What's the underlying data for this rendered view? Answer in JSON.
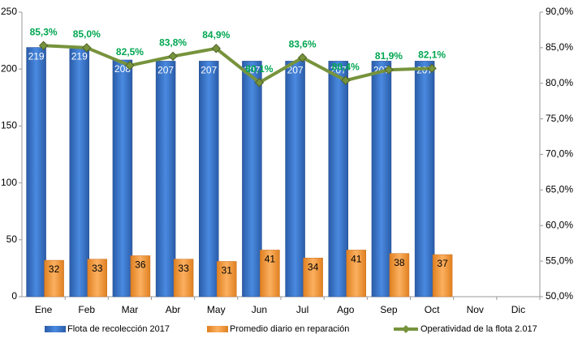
{
  "chart_data": {
    "type": "bar-line",
    "categories": [
      "Ene",
      "Feb",
      "Mar",
      "Abr",
      "May",
      "Jun",
      "Jul",
      "Ago",
      "Sep",
      "Oct",
      "Nov",
      "Dic"
    ],
    "series": [
      {
        "name": "Flota de recolección 2017",
        "color": "#3a73c4",
        "type": "bar",
        "values": [
          219,
          219,
          208,
          207,
          207,
          207,
          207,
          207,
          207,
          207,
          null,
          null
        ]
      },
      {
        "name": "Promedio diario en reparación",
        "color": "#f79a3a",
        "type": "bar",
        "values": [
          32,
          33,
          36,
          33,
          31,
          41,
          34,
          41,
          38,
          37,
          null,
          null
        ]
      },
      {
        "name": "Operatividad de la flota 2.017",
        "color": "#77933c",
        "type": "line",
        "axis": "y2",
        "values": [
          85.3,
          85.0,
          82.5,
          83.8,
          84.9,
          80.1,
          83.6,
          80.4,
          81.9,
          82.1,
          null,
          null
        ],
        "value_labels": [
          "85,3%",
          "85,0%",
          "82,5%",
          "83,8%",
          "84,9%",
          "80,1%",
          "83,6%",
          "80,4%",
          "81,9%",
          "82,1%",
          null,
          null
        ]
      }
    ],
    "ylim": [
      0,
      250
    ],
    "yticks": [
      0,
      50,
      100,
      150,
      200,
      250
    ],
    "y2lim": [
      50,
      90
    ],
    "y2ticks": [
      {
        "value": 50,
        "label": "50,0%"
      },
      {
        "value": 55,
        "label": "55,0%"
      },
      {
        "value": 60,
        "label": "60,0%"
      },
      {
        "value": 65,
        "label": "65,0%"
      },
      {
        "value": 70,
        "label": "70,0%"
      },
      {
        "value": 75,
        "label": "75,0%"
      },
      {
        "value": 80,
        "label": "80,0%"
      },
      {
        "value": 85,
        "label": "85,0%"
      },
      {
        "value": 90,
        "label": "90,0%"
      }
    ],
    "legend": "bottom"
  }
}
